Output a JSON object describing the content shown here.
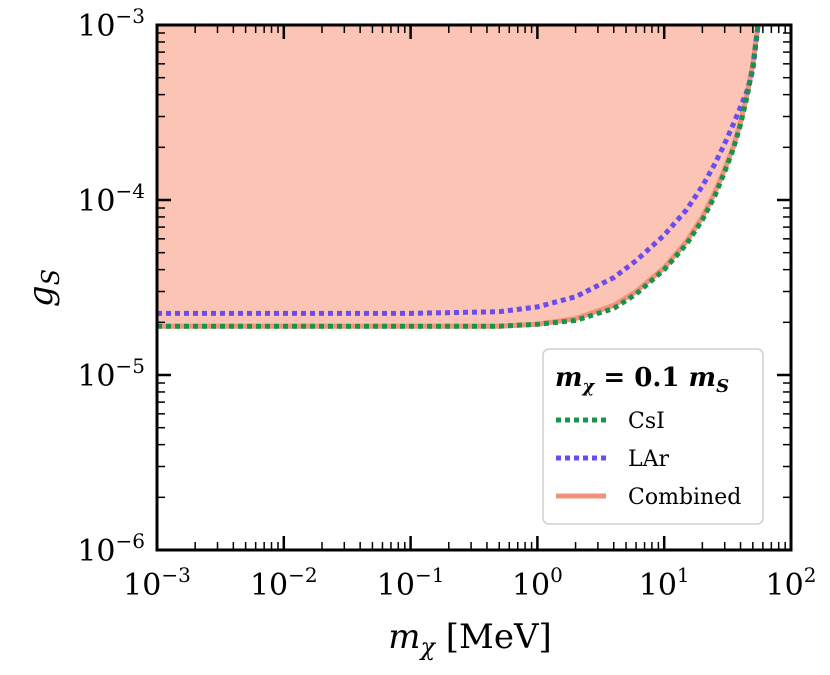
{
  "chart_data": {
    "type": "line",
    "xscale": "log",
    "yscale": "log",
    "xlim": [
      0.001,
      100
    ],
    "ylim": [
      1e-06,
      0.001
    ],
    "xticks": [
      {
        "base": "10",
        "exp": "−3",
        "value": 0.001
      },
      {
        "base": "10",
        "exp": "−2",
        "value": 0.01
      },
      {
        "base": "10",
        "exp": "−1",
        "value": 0.1
      },
      {
        "base": "10",
        "exp": "0",
        "value": 1
      },
      {
        "base": "10",
        "exp": "1",
        "value": 10
      },
      {
        "base": "10",
        "exp": "2",
        "value": 100
      }
    ],
    "yticks": [
      {
        "base": "10",
        "exp": "−6",
        "value": 1e-06
      },
      {
        "base": "10",
        "exp": "−5",
        "value": 1e-05
      },
      {
        "base": "10",
        "exp": "−4",
        "value": 0.0001
      },
      {
        "base": "10",
        "exp": "−3",
        "value": 0.001
      }
    ],
    "xlabel": {
      "var": "m",
      "sub": "χ",
      "unit": " [MeV]"
    },
    "ylabel": {
      "var": "g",
      "sub": "S"
    },
    "legend": {
      "title": "m_χ = 0.1 m_S",
      "title_parts": {
        "m1": "m",
        "sub1": "χ",
        "mid": " = 0.1 ",
        "m2": "m",
        "sub2": "S"
      },
      "position": "lower-right"
    },
    "series": [
      {
        "name": "Combined",
        "color": "#f4917a",
        "fill": "#fbc4b5",
        "style": "solid",
        "x": [
          0.001,
          0.01,
          0.1,
          0.5,
          1,
          2,
          4,
          6,
          10,
          15,
          20,
          25,
          30,
          35,
          40,
          45,
          50,
          55
        ],
        "y": [
          1.9e-05,
          1.9e-05,
          1.9e-05,
          1.9e-05,
          1.95e-05,
          2.1e-05,
          2.5e-05,
          3e-05,
          4.1e-05,
          5.8e-05,
          8e-05,
          0.00011,
          0.00015,
          0.0002,
          0.00028,
          0.0004,
          0.0006,
          0.001
        ]
      },
      {
        "name": "CsI",
        "color": "#17944c",
        "style": "dotted",
        "x": [
          0.001,
          0.01,
          0.1,
          0.5,
          1,
          2,
          4,
          6,
          10,
          15,
          20,
          25,
          30,
          35,
          40,
          45,
          50,
          55
        ],
        "y": [
          1.9e-05,
          1.9e-05,
          1.9e-05,
          1.9e-05,
          1.95e-05,
          2.05e-05,
          2.4e-05,
          2.9e-05,
          4e-05,
          5.6e-05,
          7.7e-05,
          0.000105,
          0.000145,
          0.000195,
          0.00027,
          0.00039,
          0.00058,
          0.001
        ]
      },
      {
        "name": "LAr",
        "color": "#6a4cf0",
        "style": "dotted",
        "x": [
          0.001,
          0.01,
          0.1,
          0.5,
          1,
          2,
          4,
          6,
          10,
          15,
          20,
          25,
          30,
          35,
          40,
          45,
          50,
          55
        ],
        "y": [
          2.25e-05,
          2.25e-05,
          2.25e-05,
          2.3e-05,
          2.45e-05,
          2.8e-05,
          3.6e-05,
          4.5e-05,
          6.3e-05,
          8.8e-05,
          0.00012,
          0.00016,
          0.00021,
          0.00027,
          0.00034,
          0.00042,
          0.00055,
          0.001
        ]
      }
    ]
  }
}
